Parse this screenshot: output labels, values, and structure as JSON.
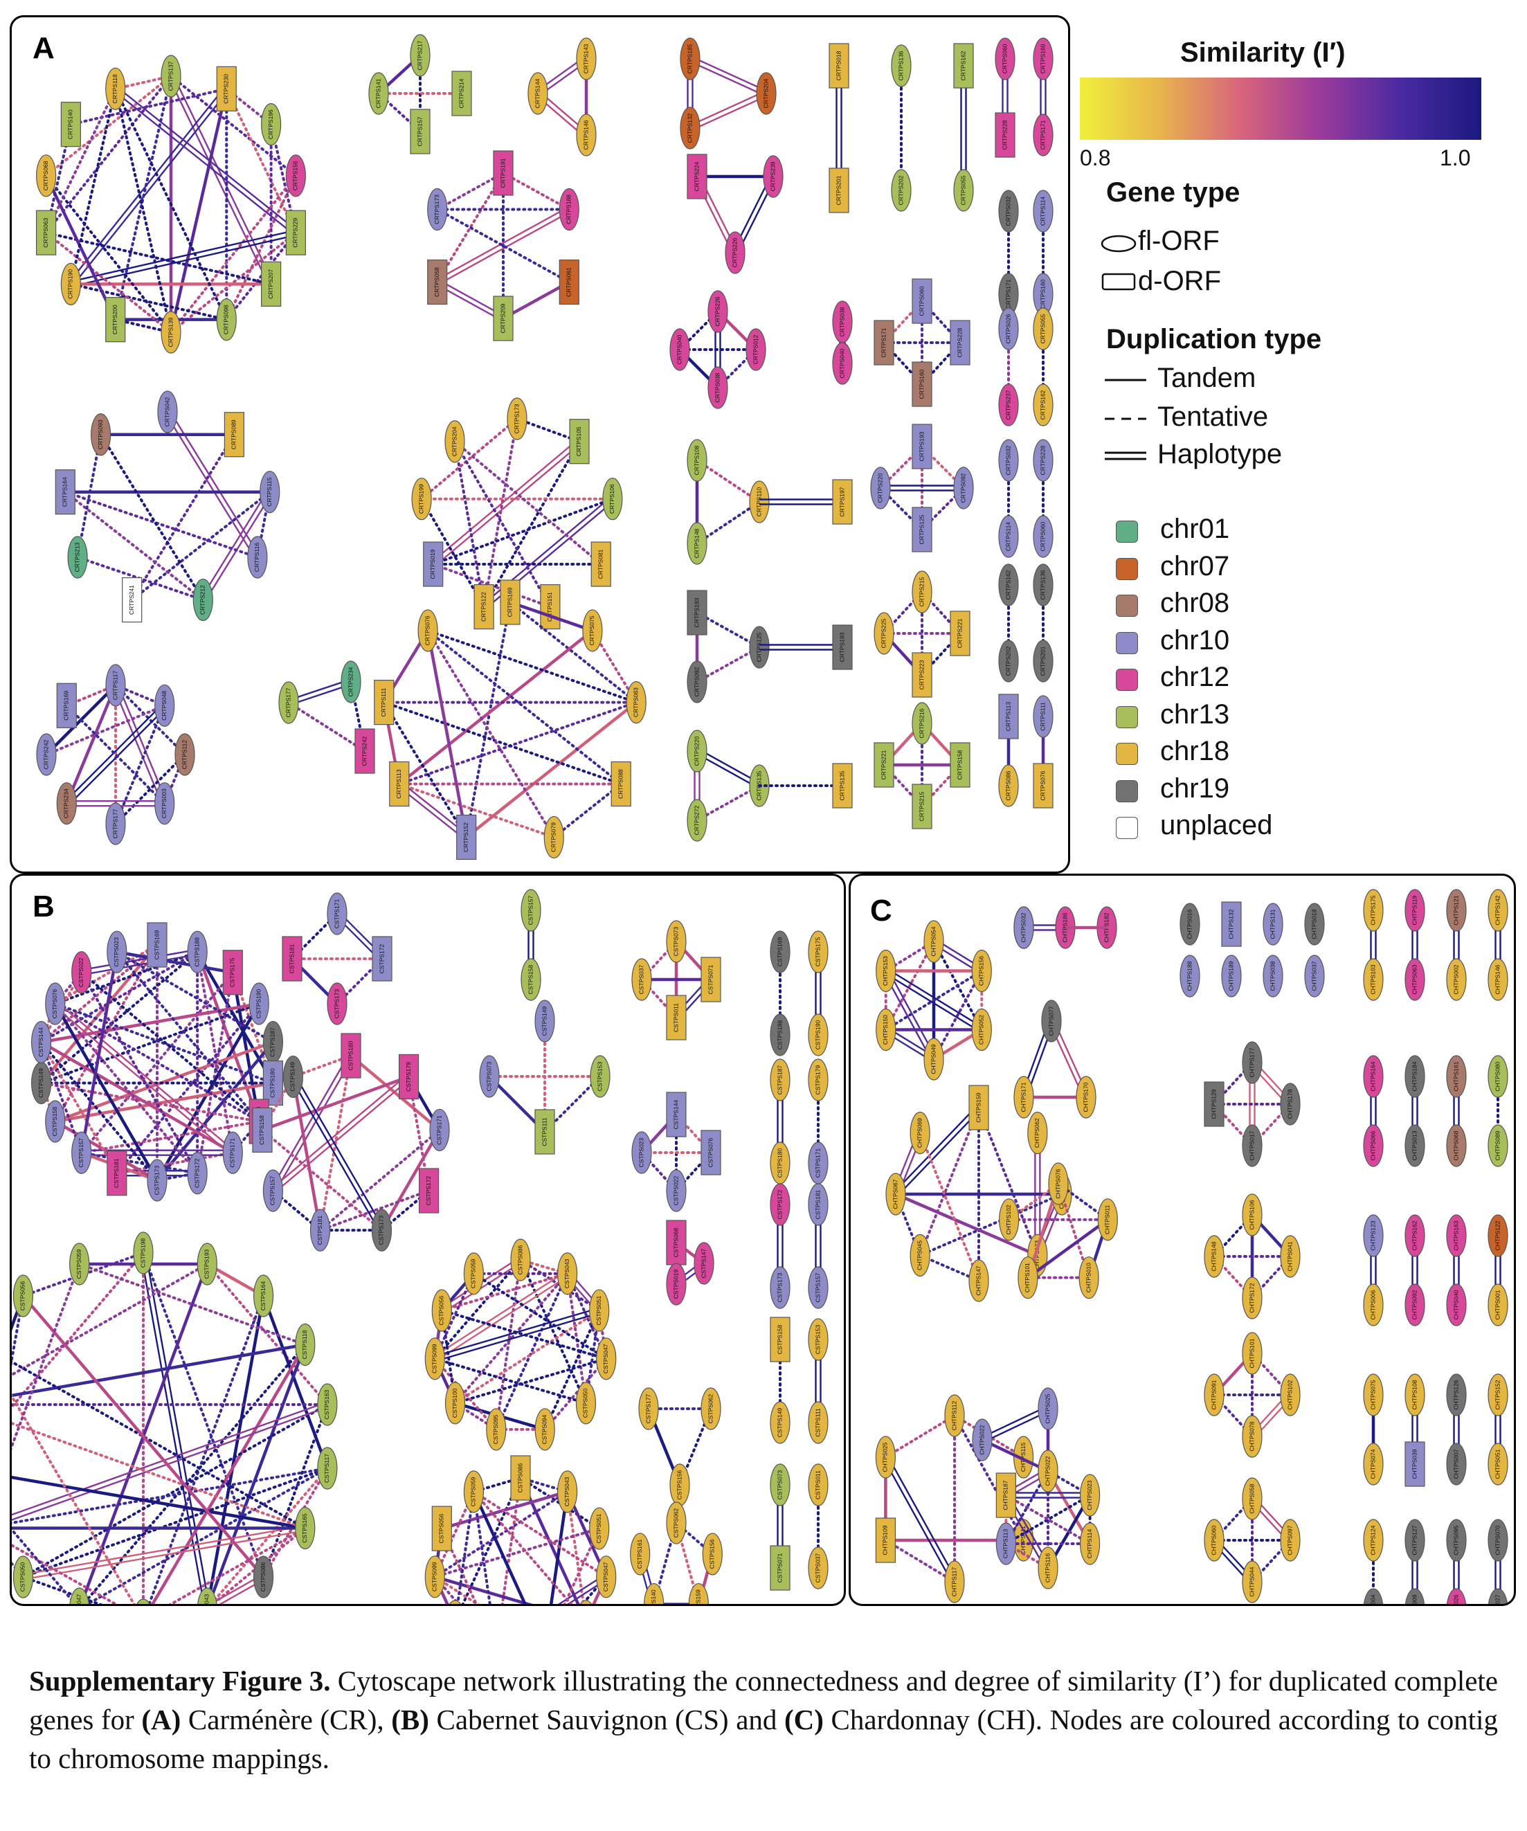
{
  "legend": {
    "similarity_title": "Similarity (I′)",
    "scale_min": "0.8",
    "scale_max": "1.0",
    "gene_type_title": "Gene type",
    "gene_types": [
      "fl-ORF",
      "d-ORF"
    ],
    "duplication_title": "Duplication type",
    "duplication_types": [
      "Tandem",
      "Tentative",
      "Haplotype"
    ],
    "chromosomes": [
      {
        "label": "chr01",
        "color": "#5fae86"
      },
      {
        "label": "chr07",
        "color": "#c8642a"
      },
      {
        "label": "chr08",
        "color": "#a87a6c"
      },
      {
        "label": "chr10",
        "color": "#8e8cc8"
      },
      {
        "label": "chr12",
        "color": "#d8489a"
      },
      {
        "label": "chr13",
        "color": "#a8be5a"
      },
      {
        "label": "chr18",
        "color": "#e2b640"
      },
      {
        "label": "chr19",
        "color": "#727272"
      },
      {
        "label": "unplaced",
        "color": "#ffffff"
      }
    ]
  },
  "panels": {
    "a": {
      "letter": "A"
    },
    "b": {
      "letter": "B"
    },
    "c": {
      "letter": "C"
    }
  },
  "caption": {
    "figure_label": "Supplementary Figure 3.",
    "text_1": " Cytoscape network illustrating the connectedness and degree of similarity (I’) for duplicated complete genes for ",
    "a_label": "(A)",
    "text_2": " Carménère (CR), ",
    "b_label": "(B)",
    "text_3": " Cabernet Sauvignon (CS) and ",
    "c_label": "(C)",
    "text_4": " Chardonnay (CH).  Nodes are coloured according to contig to chromosome mappings."
  },
  "network_a": {
    "node_labels": [
      "CRTPS137",
      "CRTPS230",
      "CRTPS196",
      "CRTPS156",
      "CRTPS229",
      "CRTPS207",
      "CRTPS098",
      "CRTPS139",
      "CRTPS200",
      "CRTPS190",
      "CRTPS063",
      "CRTPS068",
      "CRTPS140",
      "CRTPS118",
      "CRTPS217",
      "CRTPS214",
      "CRTPS157",
      "CRTPS141",
      "CRTPS144",
      "CRTPS143",
      "CRTPS146",
      "CRTPS185",
      "CRTPS132",
      "CRTPS018",
      "CRTPS201",
      "CRTPS136",
      "CRTPS202",
      "CRTPS162",
      "CRTPS055",
      "CRTPS060",
      "CRTPS228",
      "CRTPS160",
      "CRTPS171",
      "CRTPS026",
      "CRTPS237",
      "CRTPS114",
      "CRTPS032",
      "CRTPS042",
      "CRTPS089",
      "CRTPS115",
      "CRTPS116",
      "CRTPS212",
      "CRTPS241",
      "CRTPS213",
      "CRTPS164",
      "CRTPS093",
      "CRTPS191",
      "CRTPS188",
      "CRTPS061",
      "CRTPS209",
      "CRTPS058",
      "CRTPS173",
      "CRTPS105",
      "CRTPS106",
      "CRTPS081",
      "CRTPS151",
      "CRTPS122",
      "CRTPS019",
      "CRTPS199",
      "CRTPS204",
      "CRTPS224",
      "CRTPS239",
      "CRTPS226",
      "CRTPS012",
      "CRTPS038",
      "CRTPS040",
      "CRTPS108",
      "CRTPS148",
      "CRTPS197",
      "CRTPS110",
      "CRTPS193",
      "CRTPS092",
      "CRTPS125",
      "CRTPS220",
      "CRTPS272",
      "CRTPS135",
      "CRTPS117",
      "CRTPS048",
      "CRTPS112",
      "CRTPS003",
      "CRTPS177",
      "CRTPS234",
      "CRTPS242",
      "CRTPS169",
      "CRTPS075",
      "CRTPS083",
      "CRTPS088",
      "CRTPS079",
      "CRTPS152",
      "CRTPS113",
      "CRTPS111",
      "CRTPS076",
      "CRTPS216",
      "CRTPS158",
      "CRTPS215",
      "CRTPS221",
      "CRTPS223",
      "CRTPS225",
      "CRTPS086"
    ]
  },
  "network_b": {
    "node_labels": [
      "CSTPS169",
      "CSTPS188",
      "CSTPS175",
      "CSTPS190",
      "CSTPS187",
      "CSTPS180",
      "CSTPS179",
      "CSTPS171",
      "CSTPS172",
      "CSTPS173",
      "CSTPS181",
      "CSTPS157",
      "CSTPS158",
      "CSTPS149",
      "CSTPS153",
      "CSTPS111",
      "CSTPS073",
      "CSTPS071",
      "CSTPS011",
      "CSTPS037",
      "CSTPS144",
      "CSTPS076",
      "CSTPS022",
      "CSTPS023",
      "CSTPS068",
      "CSTPS019",
      "CSTPS147",
      "CSTPS177",
      "CSTPS062",
      "CSTPS156",
      "CSTPS159",
      "CSTPS140",
      "CSTPS161",
      "CSTPS198",
      "CSTPS193",
      "CSTPS164",
      "CSTPS118",
      "CSTPS163",
      "CSTPS117",
      "CSTPS165",
      "CSTPS086",
      "CSTPS043",
      "CSTPS051",
      "CSTPS047",
      "CSTPS050",
      "CSTPS094",
      "CSTPS095",
      "CSTPS100",
      "CSTPS099",
      "CSTPS056",
      "CSTPS059"
    ]
  },
  "network_c": {
    "node_labels": [
      "CHTPS054",
      "CHTPS156",
      "CHTPS052",
      "CHTPS049",
      "CHTPS150",
      "CHTPS153",
      "CHTPS032",
      "CHTPS186",
      "CHTPS182",
      "CHTPS016",
      "CHTPS132",
      "CHTPS131",
      "CHTPS018",
      "CHTPS188",
      "CHTPS189",
      "CHTPS038",
      "CHTPS037",
      "CHTPS175",
      "CHTPS119",
      "CHTPS121",
      "CHTPS142",
      "CHTPS103",
      "CHTPS063",
      "CHTPS002",
      "CHTPS146",
      "CHTPS077",
      "CHTPS171",
      "CHTPS170",
      "CHTPS159",
      "CHTPS062",
      "CHTPS046",
      "CHTPS173",
      "CHTPS147",
      "CHTPS045",
      "CHTPS067",
      "CHTPS069",
      "CHTPS177",
      "CHTPS178",
      "CHTPS017",
      "CHTPS129",
      "CHTPS106",
      "CHTPS041",
      "CHTPS172",
      "CHTPS148",
      "CHTPS164",
      "CHTPS184",
      "CHTPS161",
      "CHTPS080",
      "CHTPS066",
      "CHTPS013",
      "CHTPS068",
      "CHTPS089",
      "CHTPS123",
      "CHTPS162",
      "CHTPS163",
      "CHTPS122",
      "CHTPS006",
      "CHTPS092",
      "CHTPS040",
      "CHTPS001",
      "CHTPS076",
      "CHTPS011",
      "CHTPS010",
      "CHTPS101",
      "CHTPS102",
      "CHTPS078",
      "CHTPS091",
      "CHTPS075",
      "CHTPS108",
      "CHTPS126",
      "CHTPS152",
      "CHTPS074",
      "CHTPS039",
      "CHTPS007",
      "CHTPS051",
      "CHTPS112",
      "CHTPS115",
      "CHTPS111",
      "CHTPS117",
      "CHTPS109",
      "CHTPS025",
      "CHTPS024",
      "CHTPS022",
      "CHTPS023",
      "CHTPS114",
      "CHTPS116",
      "CHTPS113",
      "CHTPS187",
      "CHTPS058",
      "CHTPS097",
      "CHTPS044",
      "CHTPS060",
      "CHTPS066",
      "CHTPS188",
      "CHTPS124",
      "CHTPS127",
      "CHTPS095",
      "CHTPS070",
      "CHTPS004",
      "CHTPS009",
      "CHTPS026",
      "CHTPS027",
      "CHTPS028",
      "CHTPS048"
    ]
  }
}
